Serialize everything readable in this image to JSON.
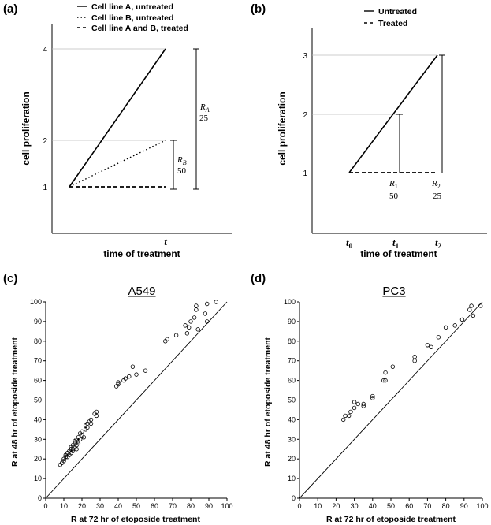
{
  "chart_data": [
    {
      "panel": "(a)",
      "type": "line",
      "ylabel": "cell proliferation",
      "xlabel": "time of treatment",
      "x_tick_labels": [
        "t"
      ],
      "y_ticks": [
        1,
        2,
        4
      ],
      "legend": {
        "placement": "top",
        "entries": [
          "Cell line A, untreated",
          "Cell line B, untreated",
          "Cell line A and B, treated"
        ]
      },
      "series": [
        {
          "name": "Cell line A, untreated",
          "style": "solid",
          "x": [
            0,
            1
          ],
          "y": [
            1,
            4
          ]
        },
        {
          "name": "Cell line B, untreated",
          "style": "dotted",
          "x": [
            0,
            1
          ],
          "y": [
            1,
            2
          ]
        },
        {
          "name": "Cell line A and B, treated",
          "style": "dashed",
          "x": [
            0,
            1
          ],
          "y": [
            1,
            1
          ]
        }
      ],
      "annotations": [
        {
          "symbol": "R",
          "sub": "A",
          "value": "25"
        },
        {
          "symbol": "R",
          "sub": "B",
          "value": "50"
        }
      ]
    },
    {
      "panel": "(b)",
      "type": "line",
      "ylabel": "cell proliferation",
      "xlabel": "time of treatment",
      "x_tick_labels": [
        {
          "base": "t",
          "sub": "0"
        },
        {
          "base": "t",
          "sub": "1"
        },
        {
          "base": "t",
          "sub": "2"
        }
      ],
      "y_ticks": [
        1,
        2,
        3
      ],
      "legend": {
        "placement": "top",
        "entries": [
          "Untreated",
          "Treated"
        ]
      },
      "series": [
        {
          "name": "Untreated",
          "style": "solid",
          "x": [
            0,
            2
          ],
          "y": [
            1,
            3
          ]
        },
        {
          "name": "Treated",
          "style": "dashed",
          "x": [
            0,
            2
          ],
          "y": [
            1,
            1
          ]
        }
      ],
      "annotations": [
        {
          "symbol": "R",
          "sub": "1",
          "value": "50"
        },
        {
          "symbol": "R",
          "sub": "2",
          "value": "25"
        }
      ]
    },
    {
      "panel": "(c)",
      "type": "scatter",
      "title": "A549",
      "xlabel": "R at 72 hr of etoposide treatment",
      "ylabel": "R at 48 hr of etoposide treatment",
      "xlim": [
        0,
        100
      ],
      "ylim": [
        0,
        100
      ],
      "ticks": [
        0,
        10,
        20,
        30,
        40,
        50,
        60,
        70,
        80,
        90,
        100
      ],
      "identity_line": true,
      "points": [
        [
          8,
          17
        ],
        [
          9,
          18
        ],
        [
          10,
          19
        ],
        [
          10,
          20
        ],
        [
          11,
          21
        ],
        [
          11,
          22
        ],
        [
          12,
          23
        ],
        [
          12,
          21
        ],
        [
          13,
          24
        ],
        [
          13,
          22
        ],
        [
          14,
          25
        ],
        [
          14,
          26
        ],
        [
          14,
          23
        ],
        [
          15,
          27
        ],
        [
          15,
          25
        ],
        [
          15,
          24
        ],
        [
          16,
          28
        ],
        [
          16,
          26
        ],
        [
          16,
          29
        ],
        [
          17,
          27
        ],
        [
          17,
          30
        ],
        [
          17,
          25
        ],
        [
          18,
          29
        ],
        [
          18,
          31
        ],
        [
          18,
          28
        ],
        [
          19,
          33
        ],
        [
          19,
          30
        ],
        [
          20,
          32
        ],
        [
          20,
          34
        ],
        [
          21,
          31
        ],
        [
          22,
          35
        ],
        [
          22,
          37
        ],
        [
          23,
          38
        ],
        [
          23,
          36
        ],
        [
          24,
          39
        ],
        [
          25,
          40
        ],
        [
          25,
          38
        ],
        [
          27,
          43
        ],
        [
          28,
          42
        ],
        [
          28,
          44
        ],
        [
          39,
          57
        ],
        [
          40,
          58
        ],
        [
          40,
          59
        ],
        [
          43,
          60
        ],
        [
          44,
          61
        ],
        [
          46,
          62
        ],
        [
          48,
          67
        ],
        [
          50,
          63
        ],
        [
          55,
          65
        ],
        [
          66,
          80
        ],
        [
          67,
          81
        ],
        [
          72,
          83
        ],
        [
          77,
          88
        ],
        [
          78,
          84
        ],
        [
          79,
          87
        ],
        [
          80,
          90
        ],
        [
          82,
          92
        ],
        [
          83,
          96
        ],
        [
          83,
          98
        ],
        [
          84,
          86
        ],
        [
          88,
          94
        ],
        [
          89,
          90
        ],
        [
          89,
          99
        ],
        [
          94,
          100
        ]
      ]
    },
    {
      "panel": "(d)",
      "type": "scatter",
      "title": "PC3",
      "xlabel": "R at 72 hr of etoposide treatment",
      "ylabel": "R at 48 hr of etoposide treatment",
      "xlim": [
        0,
        100
      ],
      "ylim": [
        0,
        100
      ],
      "ticks": [
        0,
        10,
        20,
        30,
        40,
        50,
        60,
        70,
        80,
        90,
        100
      ],
      "identity_line": true,
      "points": [
        [
          24,
          40
        ],
        [
          25,
          42
        ],
        [
          27,
          42
        ],
        [
          28,
          44
        ],
        [
          30,
          46
        ],
        [
          30,
          49
        ],
        [
          32,
          48
        ],
        [
          35,
          48
        ],
        [
          35,
          47
        ],
        [
          40,
          51
        ],
        [
          40,
          52
        ],
        [
          46,
          60
        ],
        [
          47,
          60
        ],
        [
          47,
          64
        ],
        [
          51,
          67
        ],
        [
          63,
          70
        ],
        [
          63,
          72
        ],
        [
          70,
          78
        ],
        [
          72,
          77
        ],
        [
          76,
          82
        ],
        [
          80,
          87
        ],
        [
          85,
          88
        ],
        [
          89,
          91
        ],
        [
          93,
          96
        ],
        [
          94,
          98
        ],
        [
          95,
          93
        ],
        [
          99,
          98
        ]
      ]
    }
  ]
}
